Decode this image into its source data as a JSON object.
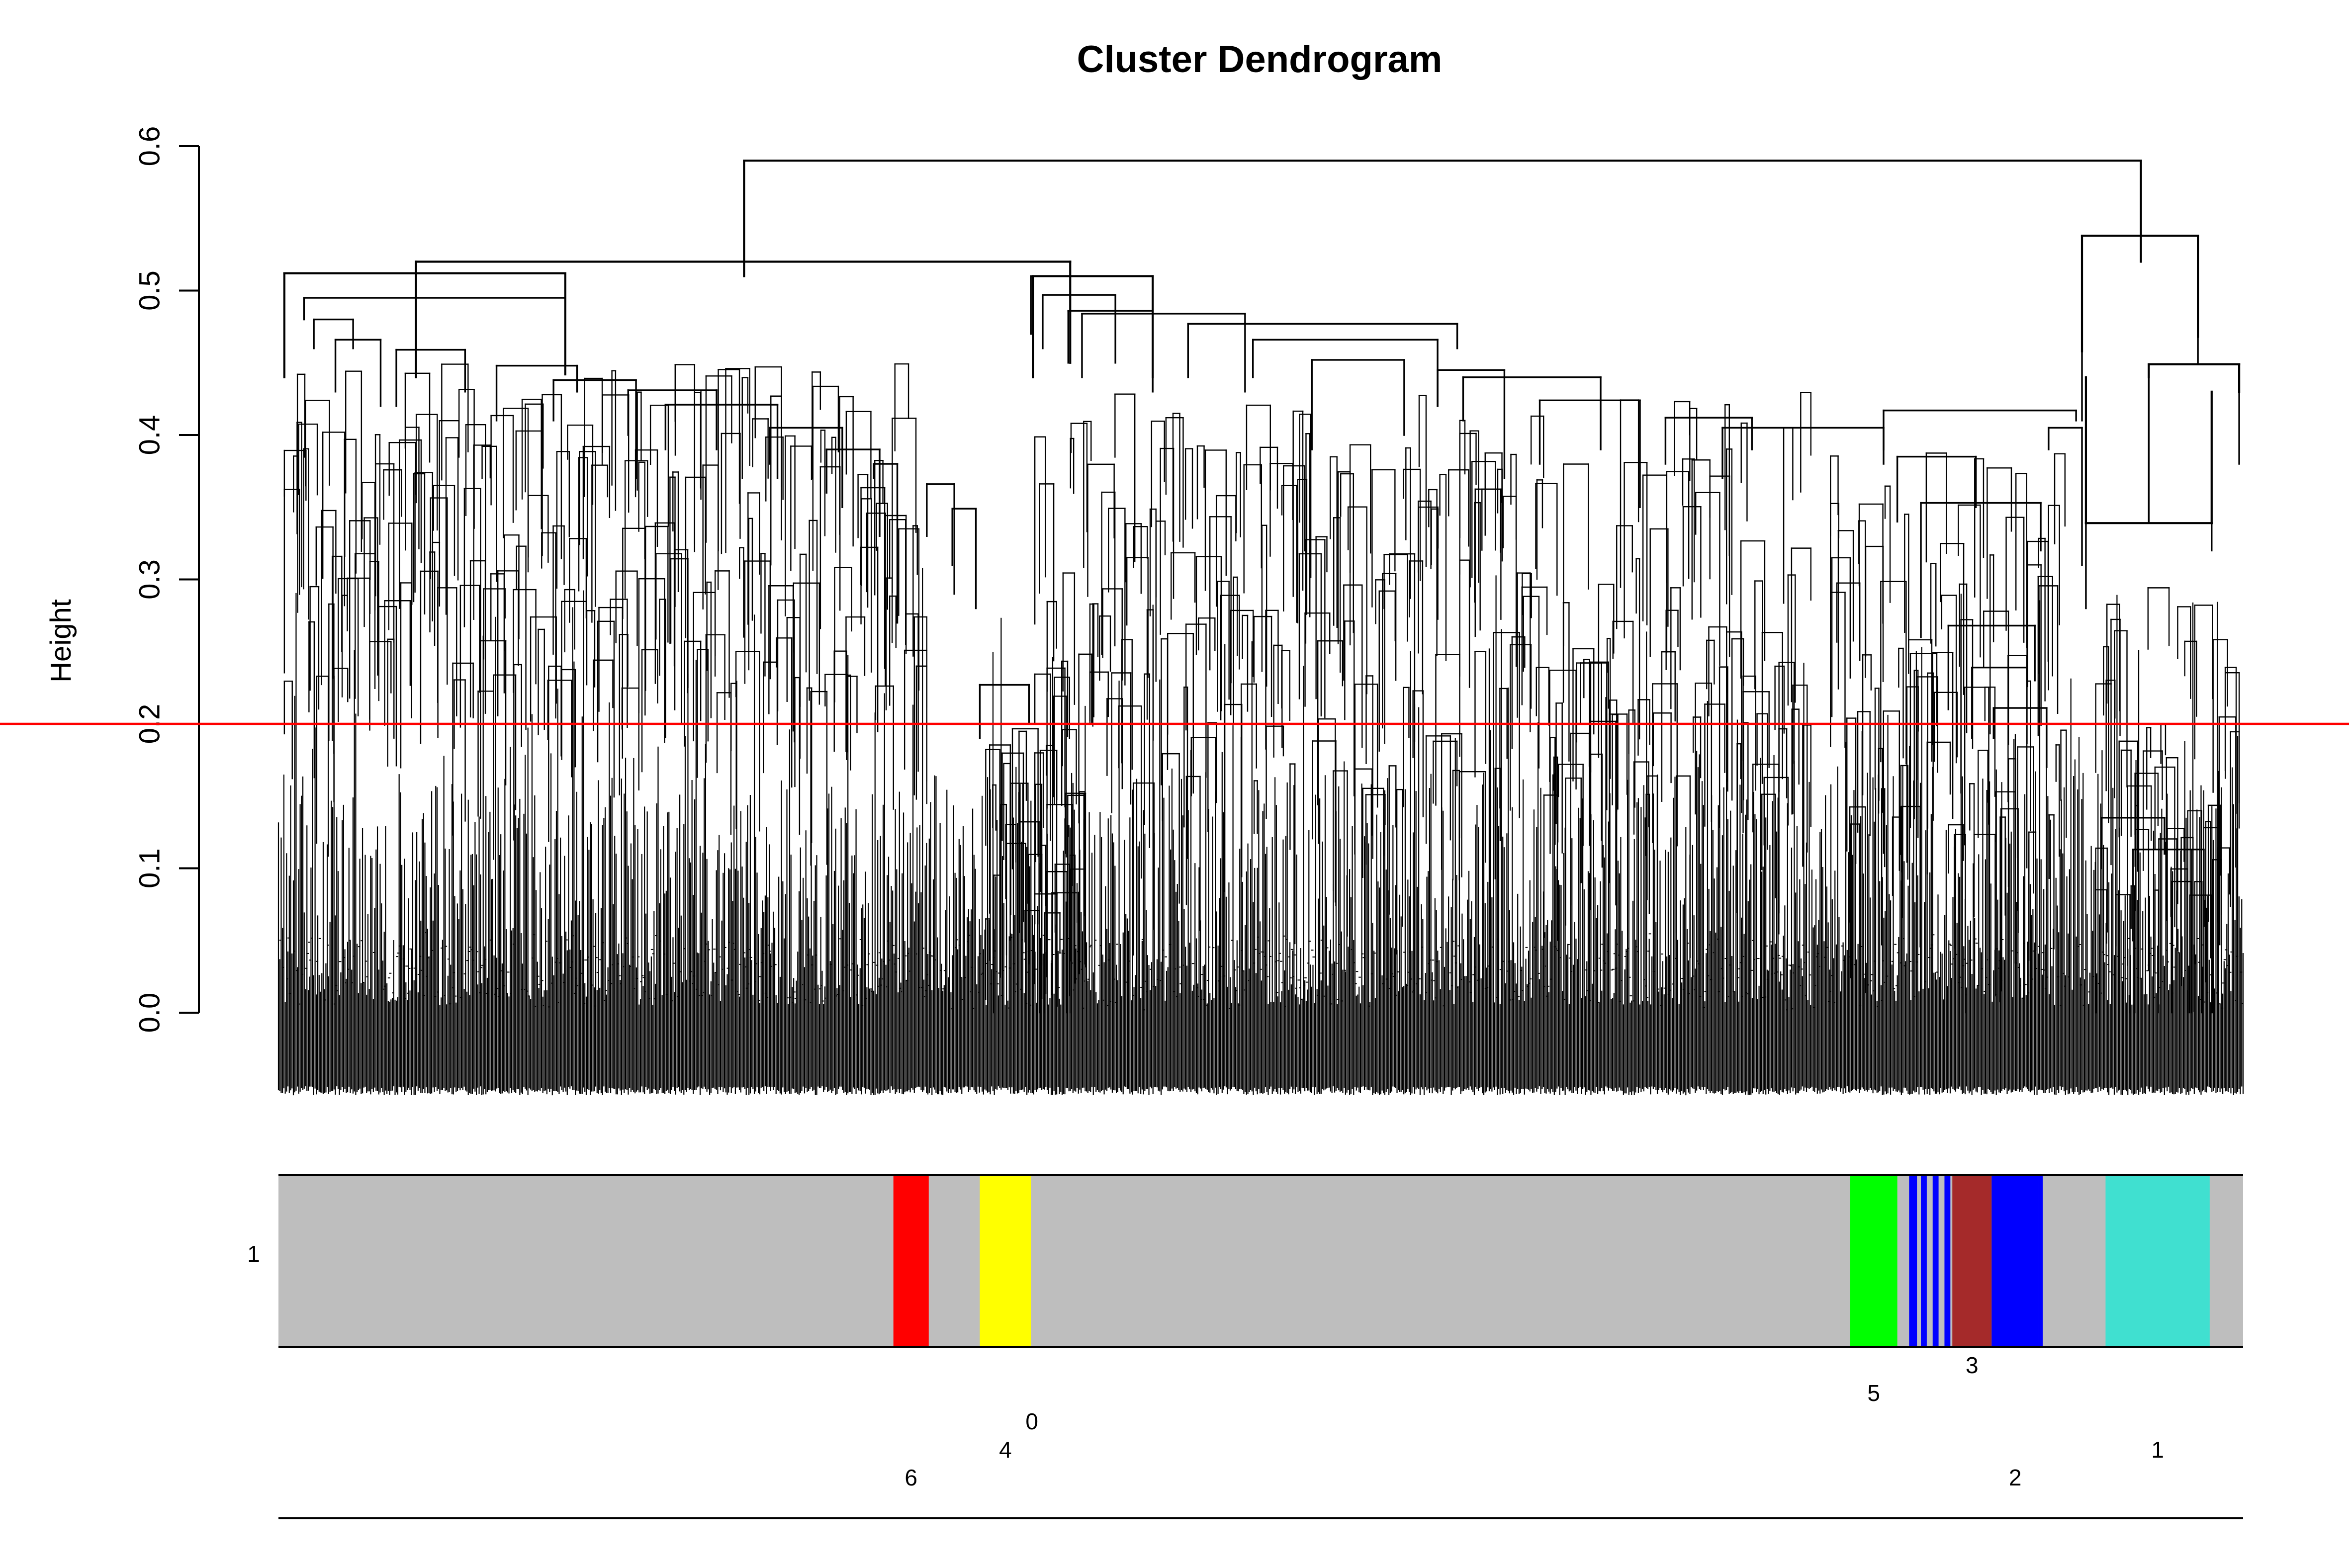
{
  "chart_data": {
    "type": "dendrogram",
    "title": "Cluster Dendrogram",
    "xlabel": "",
    "ylabel": "Height",
    "ylim": [
      0,
      0.6
    ],
    "y_ticks": [
      "0.0",
      "0.1",
      "0.2",
      "0.3",
      "0.4",
      "0.5",
      "0.6"
    ],
    "cut_height": 0.2,
    "cut_color": "#ff0000",
    "leaf_region": [
      0.0,
      1.0
    ],
    "major_merges": [
      {
        "name": "root",
        "height": 0.59,
        "left_x": 0.237,
        "right_x": 0.948
      },
      {
        "name": "left-main-group",
        "height": 0.52,
        "left_x": 0.07,
        "right_x": 0.403
      },
      {
        "name": "left-subgroup",
        "height": 0.512,
        "left_x": 0.003,
        "right_x": 0.146
      },
      {
        "name": "middle-group",
        "height": 0.51,
        "left_x": 0.384,
        "right_x": 0.445
      },
      {
        "name": "right-small-group",
        "height": 0.538,
        "left_x": 0.918,
        "right_x": 0.977
      },
      {
        "name": "turquoise-branch",
        "height": 0.449,
        "left_x": 0.952,
        "right_x": 0.998
      },
      {
        "name": "turquoise-module",
        "height": 0.339,
        "left_x": 0.92,
        "right_x": 0.984
      }
    ],
    "module_bar": {
      "row_label": "1",
      "background": "#bebebe",
      "modules": [
        {
          "label": "6",
          "start": 0.313,
          "end": 0.331,
          "color": "#ff0000",
          "label_row": 4
        },
        {
          "label": "4",
          "start": 0.357,
          "end": 0.383,
          "color": "#ffff00",
          "label_row": 3
        },
        {
          "label": "0",
          "start": 0.383,
          "end": 0.384,
          "color": "#bebebe",
          "label_row": 2
        },
        {
          "label": "5",
          "start": 0.8,
          "end": 0.824,
          "color": "#00ff00",
          "label_row": 1
        },
        {
          "label": "3",
          "start": 0.852,
          "end": 0.872,
          "color": "#a52a2a",
          "label_row": 0
        },
        {
          "label": "2",
          "start": 0.872,
          "end": 0.896,
          "color": "#0000ff",
          "label_row": 4
        },
        {
          "label": "1",
          "start": 0.93,
          "end": 0.983,
          "color": "#40e0d0",
          "label_row": 3
        }
      ],
      "blue_stripes": [
        {
          "start": 0.83,
          "end": 0.834,
          "color": "#0000ff"
        },
        {
          "start": 0.836,
          "end": 0.839,
          "color": "#0000ff"
        },
        {
          "start": 0.842,
          "end": 0.845,
          "color": "#0000ff"
        },
        {
          "start": 0.848,
          "end": 0.851,
          "color": "#0000ff"
        },
        {
          "start": 0.896,
          "end": 0.898,
          "color": "#0000ff"
        }
      ]
    }
  }
}
